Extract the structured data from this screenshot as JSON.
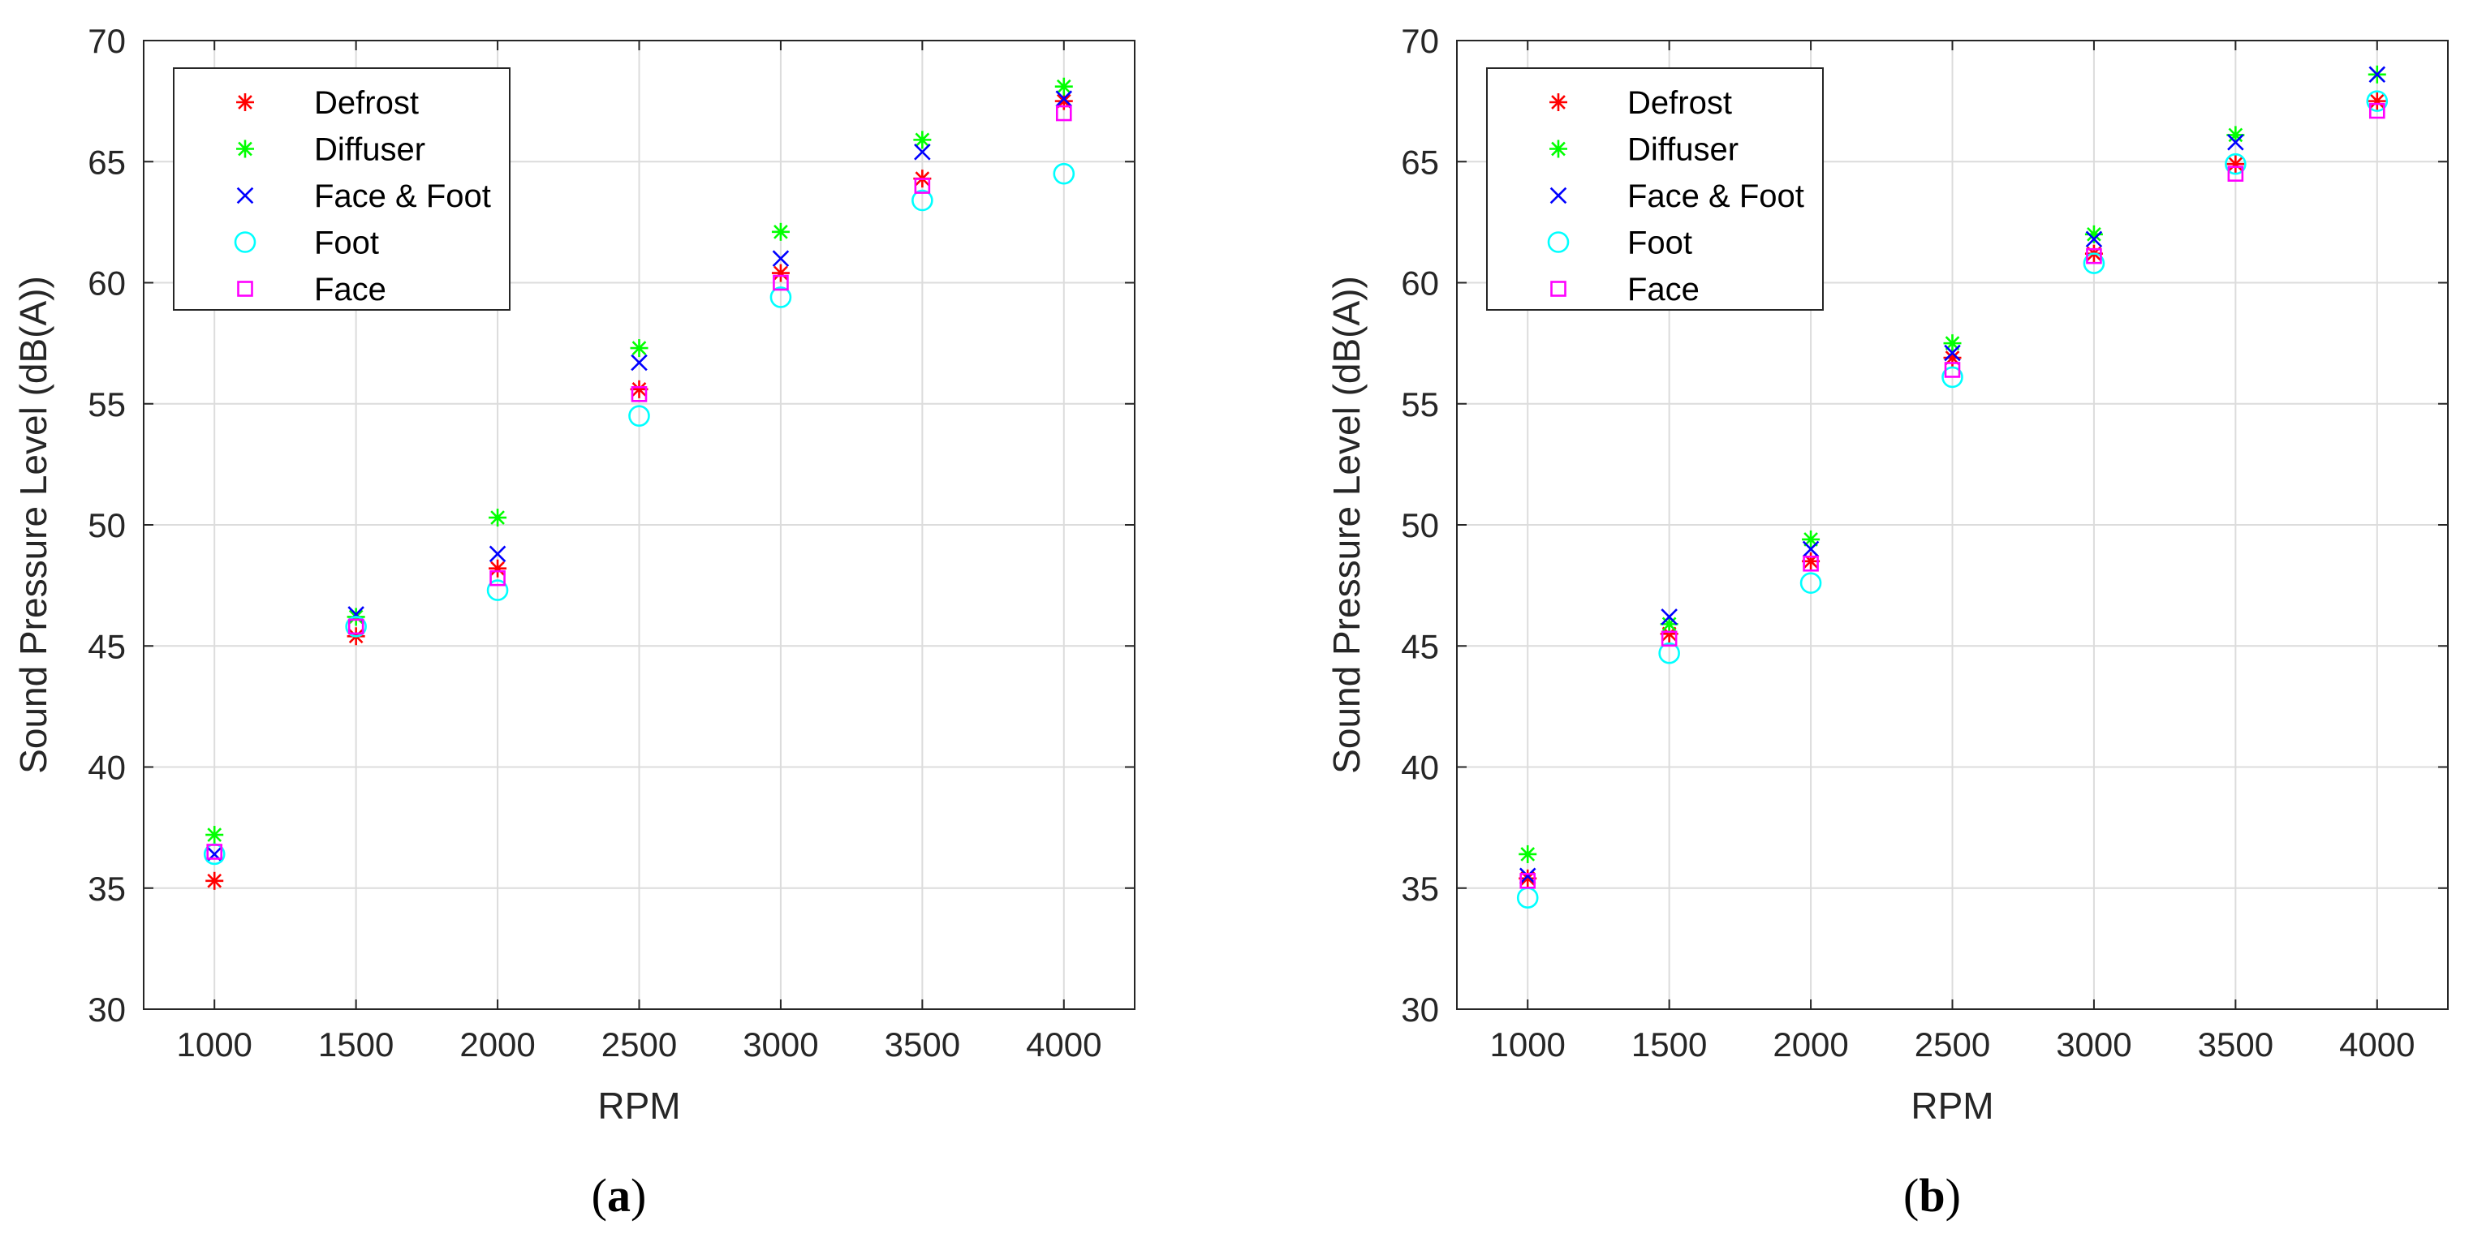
{
  "chart_data": [
    {
      "type": "scatter",
      "panel_label": "a",
      "xlabel": "RPM",
      "ylabel": "Sound Pressure Level (dB(A))",
      "xlim": [
        750,
        4250
      ],
      "ylim": [
        30,
        70
      ],
      "x": [
        1000,
        1500,
        2000,
        2500,
        3000,
        3500,
        4000
      ],
      "x_tick_labels": [
        "1000",
        "1500",
        "2000",
        "2500",
        "3000",
        "3500",
        "4000"
      ],
      "y_ticks": [
        30,
        35,
        40,
        45,
        50,
        55,
        60,
        65,
        70
      ],
      "y_tick_labels": [
        "30",
        "35",
        "40",
        "45",
        "50",
        "55",
        "60",
        "65",
        "70"
      ],
      "grid": true,
      "legend_position": "top-left",
      "series": [
        {
          "name": "Defrost",
          "marker": "asterisk",
          "color": "#ff0000",
          "values": [
            35.3,
            45.4,
            48.2,
            55.6,
            60.4,
            64.3,
            67.5
          ]
        },
        {
          "name": "Diffuser",
          "marker": "asterisk",
          "color": "#00ff00",
          "values": [
            37.2,
            46.2,
            50.3,
            57.3,
            62.1,
            65.9,
            68.1
          ]
        },
        {
          "name": "Face & Foot",
          "marker": "x",
          "color": "#0000ff",
          "values": [
            36.4,
            46.3,
            48.8,
            56.7,
            61.0,
            65.4,
            67.6
          ]
        },
        {
          "name": "Foot",
          "marker": "circle",
          "color": "#00ffff",
          "values": [
            36.4,
            45.8,
            47.3,
            54.5,
            59.4,
            63.4,
            64.5
          ]
        },
        {
          "name": "Face",
          "marker": "square",
          "color": "#ff00ff",
          "values": [
            36.5,
            45.8,
            47.8,
            55.4,
            60.0,
            64.0,
            67.0
          ]
        }
      ]
    },
    {
      "type": "scatter",
      "panel_label": "b",
      "xlabel": "RPM",
      "ylabel": "Sound Pressure Level (dB(A))",
      "xlim": [
        750,
        4250
      ],
      "ylim": [
        30,
        70
      ],
      "x": [
        1000,
        1500,
        2000,
        2500,
        3000,
        3500,
        4000
      ],
      "x_tick_labels": [
        "1000",
        "1500",
        "2000",
        "2500",
        "3000",
        "3500",
        "4000"
      ],
      "y_ticks": [
        30,
        35,
        40,
        45,
        50,
        55,
        60,
        65,
        70
      ],
      "y_tick_labels": [
        "30",
        "35",
        "40",
        "45",
        "50",
        "55",
        "60",
        "65",
        "70"
      ],
      "grid": true,
      "legend_position": "top-left",
      "series": [
        {
          "name": "Defrost",
          "marker": "asterisk",
          "color": "#ff0000",
          "values": [
            35.4,
            45.5,
            48.5,
            56.9,
            61.2,
            64.9,
            67.5
          ]
        },
        {
          "name": "Diffuser",
          "marker": "asterisk",
          "color": "#00ff00",
          "values": [
            36.4,
            45.9,
            49.4,
            57.5,
            62.0,
            66.1,
            68.6
          ]
        },
        {
          "name": "Face & Foot",
          "marker": "x",
          "color": "#0000ff",
          "values": [
            35.5,
            46.2,
            49.0,
            57.1,
            61.8,
            65.8,
            68.6
          ]
        },
        {
          "name": "Foot",
          "marker": "circle",
          "color": "#00ffff",
          "values": [
            34.6,
            44.7,
            47.6,
            56.1,
            60.8,
            64.9,
            67.5
          ]
        },
        {
          "name": "Face",
          "marker": "square",
          "color": "#ff00ff",
          "values": [
            35.3,
            45.3,
            48.4,
            56.4,
            61.1,
            64.5,
            67.1
          ]
        }
      ]
    }
  ]
}
